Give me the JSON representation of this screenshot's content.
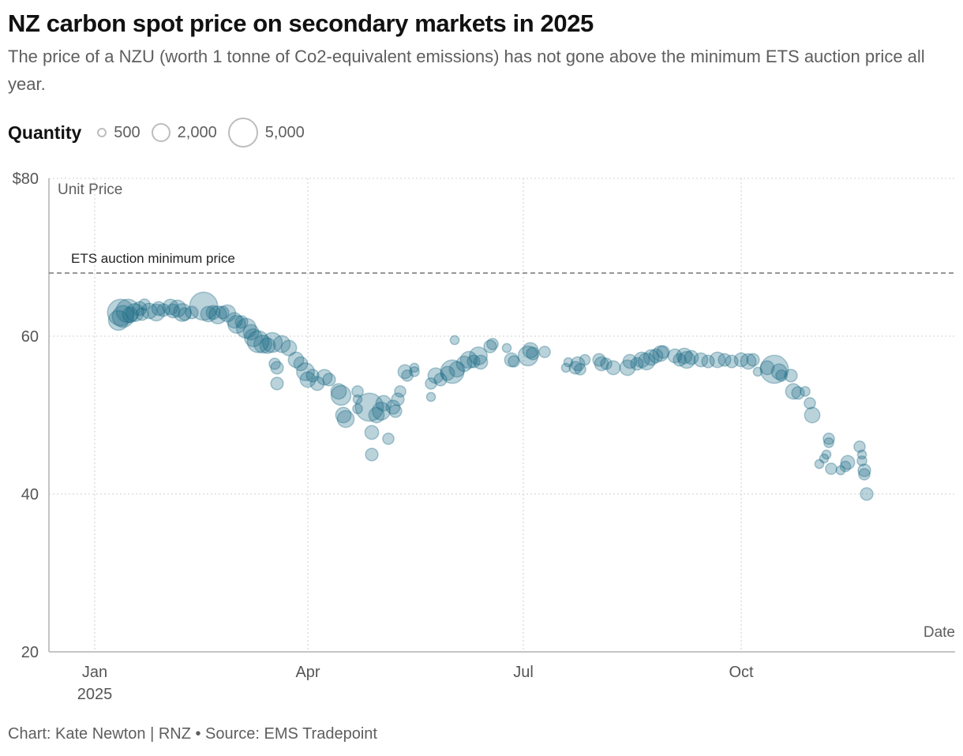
{
  "header": {
    "title": "NZ carbon spot price on secondary markets in 2025",
    "subtitle": "The price of a NZU (worth 1 tonne of Co2-equivalent emissions) has not gone above the minimum ETS auction price all year."
  },
  "legend": {
    "title": "Quantity",
    "items": [
      {
        "label": "500",
        "value": 500
      },
      {
        "label": "2,000",
        "value": 2000
      },
      {
        "label": "5,000",
        "value": 5000
      }
    ]
  },
  "footer": {
    "text": "Chart: Kate Newton | RNZ • Source: EMS Tradepoint"
  },
  "colors": {
    "bubble_fill": "#1b6a84",
    "bubble_stroke": "#1b6a84",
    "reference_line": "#777777",
    "grid": "#d9d9d9",
    "axis": "#c4c4c4"
  },
  "chart_data": {
    "type": "scatter",
    "subtype": "bubble",
    "title": "NZ carbon spot price on secondary markets in 2025",
    "xlabel": "Date",
    "ylabel": "Unit Price",
    "ylim": [
      20,
      80
    ],
    "xlim": [
      "2024-12-12",
      "2025-12-31"
    ],
    "y_ticks": [
      {
        "value": 80,
        "label": "$80"
      },
      {
        "value": 60,
        "label": "60"
      },
      {
        "value": 40,
        "label": "40"
      },
      {
        "value": 20,
        "label": "20"
      }
    ],
    "x_ticks": [
      {
        "date": "2025-01-01",
        "label": "Jan",
        "sublabel": "2025"
      },
      {
        "date": "2025-04-01",
        "label": "Apr",
        "sublabel": ""
      },
      {
        "date": "2025-07-01",
        "label": "Jul",
        "sublabel": ""
      },
      {
        "date": "2025-10-01",
        "label": "Oct",
        "sublabel": ""
      }
    ],
    "grid": true,
    "reference_line": {
      "value": 68,
      "label": "ETS auction minimum price"
    },
    "size_encoding": "quantity",
    "points": [
      {
        "date": "2025-01-11",
        "price": 62.0,
        "quantity": 2500
      },
      {
        "date": "2025-01-12",
        "price": 63.0,
        "quantity": 4500
      },
      {
        "date": "2025-01-13",
        "price": 62.5,
        "quantity": 3000
      },
      {
        "date": "2025-01-15",
        "price": 63.2,
        "quantity": 3500
      },
      {
        "date": "2025-01-16",
        "price": 62.7,
        "quantity": 1500
      },
      {
        "date": "2025-01-18",
        "price": 63.0,
        "quantity": 2000
      },
      {
        "date": "2025-01-20",
        "price": 63.5,
        "quantity": 1200
      },
      {
        "date": "2025-01-21",
        "price": 62.8,
        "quantity": 1000
      },
      {
        "date": "2025-01-22",
        "price": 64.0,
        "quantity": 800
      },
      {
        "date": "2025-01-24",
        "price": 63.2,
        "quantity": 1500
      },
      {
        "date": "2025-01-27",
        "price": 63.0,
        "quantity": 1800
      },
      {
        "date": "2025-01-28",
        "price": 63.5,
        "quantity": 1200
      },
      {
        "date": "2025-01-30",
        "price": 63.3,
        "quantity": 1000
      },
      {
        "date": "2025-02-02",
        "price": 63.7,
        "quantity": 1500
      },
      {
        "date": "2025-02-03",
        "price": 63.2,
        "quantity": 1200
      },
      {
        "date": "2025-02-05",
        "price": 63.5,
        "quantity": 1800
      },
      {
        "date": "2025-02-07",
        "price": 63.0,
        "quantity": 2000
      },
      {
        "date": "2025-02-08",
        "price": 62.8,
        "quantity": 1000
      },
      {
        "date": "2025-02-11",
        "price": 63.0,
        "quantity": 1000
      },
      {
        "date": "2025-02-16",
        "price": 63.8,
        "quantity": 5000
      },
      {
        "date": "2025-02-18",
        "price": 62.8,
        "quantity": 1500
      },
      {
        "date": "2025-02-20",
        "price": 63.0,
        "quantity": 1200
      },
      {
        "date": "2025-02-22",
        "price": 62.7,
        "quantity": 2000
      },
      {
        "date": "2025-02-24",
        "price": 63.0,
        "quantity": 1000
      },
      {
        "date": "2025-02-26",
        "price": 62.9,
        "quantity": 1800
      },
      {
        "date": "2025-03-01",
        "price": 62.0,
        "quantity": 1500
      },
      {
        "date": "2025-03-02",
        "price": 61.5,
        "quantity": 2000
      },
      {
        "date": "2025-03-04",
        "price": 61.8,
        "quantity": 1000
      },
      {
        "date": "2025-03-06",
        "price": 61.0,
        "quantity": 2500
      },
      {
        "date": "2025-03-08",
        "price": 60.5,
        "quantity": 1500
      },
      {
        "date": "2025-03-09",
        "price": 59.8,
        "quantity": 2000
      },
      {
        "date": "2025-03-11",
        "price": 59.3,
        "quantity": 3000
      },
      {
        "date": "2025-03-13",
        "price": 59.0,
        "quantity": 2000
      },
      {
        "date": "2025-03-15",
        "price": 58.8,
        "quantity": 1500
      },
      {
        "date": "2025-03-17",
        "price": 59.2,
        "quantity": 2500
      },
      {
        "date": "2025-03-18",
        "price": 56.5,
        "quantity": 800
      },
      {
        "date": "2025-03-19",
        "price": 56.0,
        "quantity": 1000
      },
      {
        "date": "2025-03-19",
        "price": 54.0,
        "quantity": 1000
      },
      {
        "date": "2025-03-21",
        "price": 59.0,
        "quantity": 1800
      },
      {
        "date": "2025-03-24",
        "price": 58.5,
        "quantity": 1500
      },
      {
        "date": "2025-03-27",
        "price": 57.0,
        "quantity": 1500
      },
      {
        "date": "2025-03-29",
        "price": 56.5,
        "quantity": 1200
      },
      {
        "date": "2025-03-31",
        "price": 55.5,
        "quantity": 2000
      },
      {
        "date": "2025-04-01",
        "price": 54.5,
        "quantity": 1500
      },
      {
        "date": "2025-04-03",
        "price": 55.0,
        "quantity": 1000
      },
      {
        "date": "2025-04-05",
        "price": 54.0,
        "quantity": 1200
      },
      {
        "date": "2025-04-08",
        "price": 54.8,
        "quantity": 1500
      },
      {
        "date": "2025-04-10",
        "price": 54.5,
        "quantity": 1000
      },
      {
        "date": "2025-04-14",
        "price": 53.0,
        "quantity": 1500
      },
      {
        "date": "2025-04-15",
        "price": 52.5,
        "quantity": 2500
      },
      {
        "date": "2025-04-16",
        "price": 50.0,
        "quantity": 1500
      },
      {
        "date": "2025-04-17",
        "price": 49.5,
        "quantity": 1800
      },
      {
        "date": "2025-04-22",
        "price": 53.0,
        "quantity": 800
      },
      {
        "date": "2025-04-22",
        "price": 52.0,
        "quantity": 500
      },
      {
        "date": "2025-04-22",
        "price": 50.8,
        "quantity": 600
      },
      {
        "date": "2025-04-27",
        "price": 51.0,
        "quantity": 5000
      },
      {
        "date": "2025-04-28",
        "price": 47.8,
        "quantity": 1200
      },
      {
        "date": "2025-04-28",
        "price": 45.0,
        "quantity": 1000
      },
      {
        "date": "2025-04-30",
        "price": 50.0,
        "quantity": 1500
      },
      {
        "date": "2025-05-02",
        "price": 50.5,
        "quantity": 2000
      },
      {
        "date": "2025-05-03",
        "price": 51.5,
        "quantity": 1500
      },
      {
        "date": "2025-05-05",
        "price": 47.0,
        "quantity": 800
      },
      {
        "date": "2025-05-07",
        "price": 51.0,
        "quantity": 1200
      },
      {
        "date": "2025-05-08",
        "price": 50.5,
        "quantity": 1000
      },
      {
        "date": "2025-05-09",
        "price": 52.0,
        "quantity": 1000
      },
      {
        "date": "2025-05-10",
        "price": 53.0,
        "quantity": 800
      },
      {
        "date": "2025-05-12",
        "price": 55.5,
        "quantity": 1200
      },
      {
        "date": "2025-05-13",
        "price": 55.0,
        "quantity": 800
      },
      {
        "date": "2025-05-16",
        "price": 55.5,
        "quantity": 600
      },
      {
        "date": "2025-05-16",
        "price": 56.0,
        "quantity": 500
      },
      {
        "date": "2025-05-23",
        "price": 54.0,
        "quantity": 800
      },
      {
        "date": "2025-05-23",
        "price": 52.3,
        "quantity": 500
      },
      {
        "date": "2025-05-25",
        "price": 55.0,
        "quantity": 1500
      },
      {
        "date": "2025-05-27",
        "price": 54.5,
        "quantity": 1000
      },
      {
        "date": "2025-05-30",
        "price": 55.3,
        "quantity": 1200
      },
      {
        "date": "2025-06-01",
        "price": 55.5,
        "quantity": 3500
      },
      {
        "date": "2025-06-02",
        "price": 59.5,
        "quantity": 500
      },
      {
        "date": "2025-06-03",
        "price": 55.8,
        "quantity": 1500
      },
      {
        "date": "2025-06-06",
        "price": 56.5,
        "quantity": 1500
      },
      {
        "date": "2025-06-08",
        "price": 57.0,
        "quantity": 1800
      },
      {
        "date": "2025-06-10",
        "price": 56.8,
        "quantity": 1000
      },
      {
        "date": "2025-06-12",
        "price": 57.5,
        "quantity": 2000
      },
      {
        "date": "2025-06-13",
        "price": 56.7,
        "quantity": 1200
      },
      {
        "date": "2025-06-17",
        "price": 58.7,
        "quantity": 1000
      },
      {
        "date": "2025-06-18",
        "price": 59.0,
        "quantity": 800
      },
      {
        "date": "2025-06-24",
        "price": 58.5,
        "quantity": 500
      },
      {
        "date": "2025-06-26",
        "price": 57.0,
        "quantity": 1200
      },
      {
        "date": "2025-06-27",
        "price": 56.8,
        "quantity": 800
      },
      {
        "date": "2025-07-03",
        "price": 57.5,
        "quantity": 2500
      },
      {
        "date": "2025-07-04",
        "price": 58.2,
        "quantity": 1500
      },
      {
        "date": "2025-07-05",
        "price": 57.8,
        "quantity": 1000
      },
      {
        "date": "2025-07-10",
        "price": 58.0,
        "quantity": 800
      },
      {
        "date": "2025-07-19",
        "price": 56.0,
        "quantity": 500
      },
      {
        "date": "2025-07-20",
        "price": 56.7,
        "quantity": 500
      },
      {
        "date": "2025-07-23",
        "price": 56.0,
        "quantity": 1000
      },
      {
        "date": "2025-07-24",
        "price": 56.5,
        "quantity": 1200
      },
      {
        "date": "2025-07-25",
        "price": 55.8,
        "quantity": 800
      },
      {
        "date": "2025-07-27",
        "price": 57.0,
        "quantity": 700
      },
      {
        "date": "2025-08-02",
        "price": 57.0,
        "quantity": 1000
      },
      {
        "date": "2025-08-03",
        "price": 56.5,
        "quantity": 1200
      },
      {
        "date": "2025-08-05",
        "price": 56.5,
        "quantity": 800
      },
      {
        "date": "2025-08-08",
        "price": 56.0,
        "quantity": 1200
      },
      {
        "date": "2025-08-14",
        "price": 56.0,
        "quantity": 1500
      },
      {
        "date": "2025-08-15",
        "price": 56.8,
        "quantity": 1200
      },
      {
        "date": "2025-08-18",
        "price": 56.5,
        "quantity": 1000
      },
      {
        "date": "2025-08-20",
        "price": 57.0,
        "quantity": 1500
      },
      {
        "date": "2025-08-22",
        "price": 56.8,
        "quantity": 1800
      },
      {
        "date": "2025-08-24",
        "price": 57.3,
        "quantity": 1500
      },
      {
        "date": "2025-08-26",
        "price": 57.5,
        "quantity": 1200
      },
      {
        "date": "2025-08-28",
        "price": 57.8,
        "quantity": 1500
      },
      {
        "date": "2025-08-29",
        "price": 58.0,
        "quantity": 1000
      },
      {
        "date": "2025-09-03",
        "price": 57.5,
        "quantity": 1200
      },
      {
        "date": "2025-09-05",
        "price": 57.0,
        "quantity": 1000
      },
      {
        "date": "2025-09-07",
        "price": 57.5,
        "quantity": 1500
      },
      {
        "date": "2025-09-08",
        "price": 57.0,
        "quantity": 1800
      },
      {
        "date": "2025-09-10",
        "price": 57.3,
        "quantity": 1200
      },
      {
        "date": "2025-09-14",
        "price": 57.0,
        "quantity": 1200
      },
      {
        "date": "2025-09-17",
        "price": 56.8,
        "quantity": 1000
      },
      {
        "date": "2025-09-21",
        "price": 57.0,
        "quantity": 1500
      },
      {
        "date": "2025-09-24",
        "price": 57.0,
        "quantity": 1000
      },
      {
        "date": "2025-09-27",
        "price": 56.8,
        "quantity": 1000
      },
      {
        "date": "2025-10-01",
        "price": 57.0,
        "quantity": 1200
      },
      {
        "date": "2025-10-04",
        "price": 56.8,
        "quantity": 1500
      },
      {
        "date": "2025-10-06",
        "price": 57.0,
        "quantity": 1000
      },
      {
        "date": "2025-10-08",
        "price": 55.5,
        "quantity": 500
      },
      {
        "date": "2025-10-12",
        "price": 56.0,
        "quantity": 1200
      },
      {
        "date": "2025-10-15",
        "price": 55.8,
        "quantity": 5000
      },
      {
        "date": "2025-10-17",
        "price": 55.5,
        "quantity": 1500
      },
      {
        "date": "2025-10-18",
        "price": 55.0,
        "quantity": 800
      },
      {
        "date": "2025-10-22",
        "price": 55.0,
        "quantity": 1000
      },
      {
        "date": "2025-10-23",
        "price": 53.0,
        "quantity": 1500
      },
      {
        "date": "2025-10-25",
        "price": 52.8,
        "quantity": 1000
      },
      {
        "date": "2025-10-28",
        "price": 53.0,
        "quantity": 600
      },
      {
        "date": "2025-10-30",
        "price": 51.5,
        "quantity": 800
      },
      {
        "date": "2025-10-31",
        "price": 50.0,
        "quantity": 1500
      },
      {
        "date": "2025-11-07",
        "price": 47.0,
        "quantity": 800
      },
      {
        "date": "2025-11-07",
        "price": 46.5,
        "quantity": 600
      },
      {
        "date": "2025-11-06",
        "price": 45.0,
        "quantity": 500
      },
      {
        "date": "2025-11-05",
        "price": 44.5,
        "quantity": 500
      },
      {
        "date": "2025-11-03",
        "price": 43.8,
        "quantity": 500
      },
      {
        "date": "2025-11-08",
        "price": 43.2,
        "quantity": 800
      },
      {
        "date": "2025-11-12",
        "price": 43.0,
        "quantity": 500
      },
      {
        "date": "2025-11-14",
        "price": 43.5,
        "quantity": 700
      },
      {
        "date": "2025-11-15",
        "price": 44.0,
        "quantity": 1200
      },
      {
        "date": "2025-11-20",
        "price": 46.0,
        "quantity": 800
      },
      {
        "date": "2025-11-21",
        "price": 45.0,
        "quantity": 500
      },
      {
        "date": "2025-11-21",
        "price": 44.2,
        "quantity": 600
      },
      {
        "date": "2025-11-22",
        "price": 43.0,
        "quantity": 1000
      },
      {
        "date": "2025-11-22",
        "price": 42.5,
        "quantity": 800
      },
      {
        "date": "2025-11-23",
        "price": 40.0,
        "quantity": 1000
      }
    ]
  }
}
